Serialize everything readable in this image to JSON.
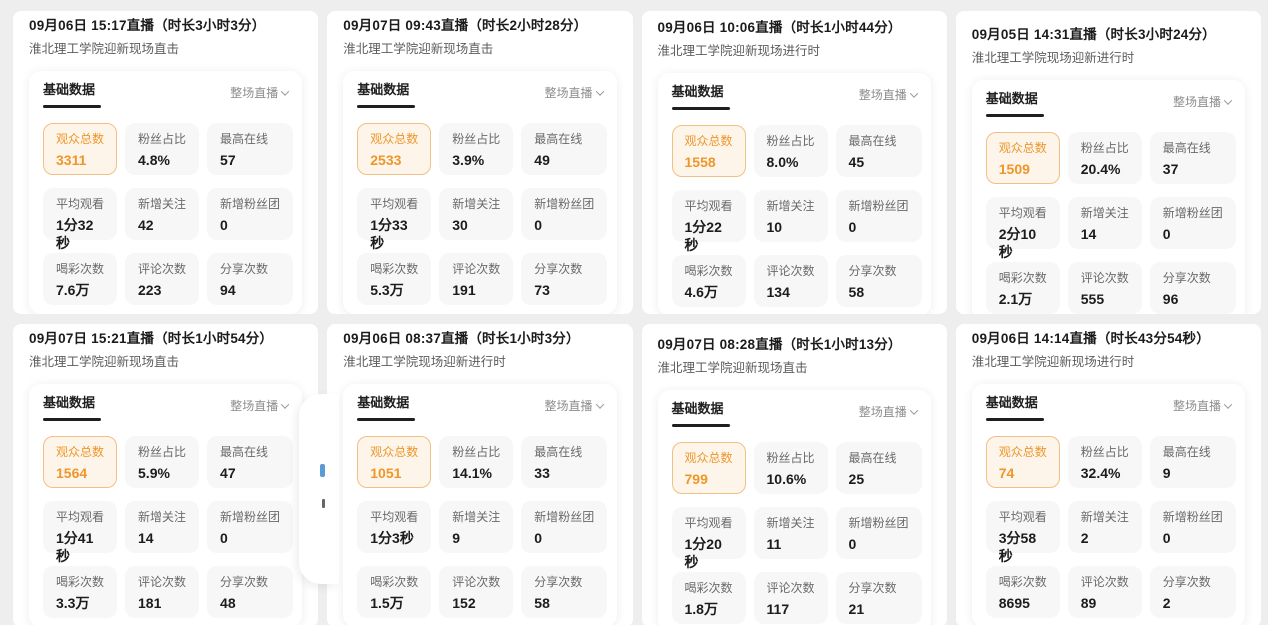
{
  "colors": {
    "page_bg": "#eeeeee",
    "card_bg": "#ffffff",
    "tile_bg": "#f7f7f8",
    "highlight_bg": "#fdf5ea",
    "highlight_border": "#f2bf84",
    "accent_orange": "#ee9629",
    "title_color": "#1b1b1b",
    "subtitle_color": "#5c5c5c",
    "muted_color": "#8d8d8d"
  },
  "ui": {
    "tab_label": "基础数据",
    "dropdown_label": "整场直播",
    "dropdown_icon": "chevron-down"
  },
  "cards": [
    {
      "title": "09月06日 15:17直播（时长3小时3分）",
      "subtitle": "淮北理工学院迎新现场直击",
      "stats": [
        {
          "label": "观众总数",
          "value": "3311",
          "highlight": true
        },
        {
          "label": "粉丝占比",
          "value": "4.8%"
        },
        {
          "label": "最高在线",
          "value": "57"
        },
        {
          "label": "平均观看",
          "value": "1分32秒"
        },
        {
          "label": "新增关注",
          "value": "42"
        },
        {
          "label": "新增粉丝团",
          "value": "0"
        },
        {
          "label": "喝彩次数",
          "value": "7.6万"
        },
        {
          "label": "评论次数",
          "value": "223"
        },
        {
          "label": "分享次数",
          "value": "94"
        }
      ]
    },
    {
      "title": "09月07日 09:43直播（时长2小时28分）",
      "subtitle": "淮北理工学院迎新现场直击",
      "stats": [
        {
          "label": "观众总数",
          "value": "2533",
          "highlight": true
        },
        {
          "label": "粉丝占比",
          "value": "3.9%"
        },
        {
          "label": "最高在线",
          "value": "49"
        },
        {
          "label": "平均观看",
          "value": "1分33秒"
        },
        {
          "label": "新增关注",
          "value": "30"
        },
        {
          "label": "新增粉丝团",
          "value": "0"
        },
        {
          "label": "喝彩次数",
          "value": "5.3万"
        },
        {
          "label": "评论次数",
          "value": "191"
        },
        {
          "label": "分享次数",
          "value": "73"
        }
      ]
    },
    {
      "title": "09月06日 10:06直播（时长1小时44分）",
      "subtitle": "淮北理工学院迎新现场进行时",
      "stats": [
        {
          "label": "观众总数",
          "value": "1558",
          "highlight": true
        },
        {
          "label": "粉丝占比",
          "value": "8.0%"
        },
        {
          "label": "最高在线",
          "value": "45"
        },
        {
          "label": "平均观看",
          "value": "1分22秒"
        },
        {
          "label": "新增关注",
          "value": "10"
        },
        {
          "label": "新增粉丝团",
          "value": "0"
        },
        {
          "label": "喝彩次数",
          "value": "4.6万"
        },
        {
          "label": "评论次数",
          "value": "134"
        },
        {
          "label": "分享次数",
          "value": "58"
        }
      ]
    },
    {
      "title": "09月05日 14:31直播（时长3小时24分）",
      "subtitle": "淮北理工学院现场迎新进行时",
      "stats": [
        {
          "label": "观众总数",
          "value": "1509",
          "highlight": true
        },
        {
          "label": "粉丝占比",
          "value": "20.4%"
        },
        {
          "label": "最高在线",
          "value": "37"
        },
        {
          "label": "平均观看",
          "value": "2分10秒"
        },
        {
          "label": "新增关注",
          "value": "14"
        },
        {
          "label": "新增粉丝团",
          "value": "0"
        },
        {
          "label": "喝彩次数",
          "value": "2.1万"
        },
        {
          "label": "评论次数",
          "value": "555"
        },
        {
          "label": "分享次数",
          "value": "96"
        }
      ]
    },
    {
      "title": "09月07日 15:21直播（时长1小时54分）",
      "subtitle": "淮北理工学院迎新现场直击",
      "stats": [
        {
          "label": "观众总数",
          "value": "1564",
          "highlight": true
        },
        {
          "label": "粉丝占比",
          "value": "5.9%"
        },
        {
          "label": "最高在线",
          "value": "47"
        },
        {
          "label": "平均观看",
          "value": "1分41秒"
        },
        {
          "label": "新增关注",
          "value": "14"
        },
        {
          "label": "新增粉丝团",
          "value": "0"
        },
        {
          "label": "喝彩次数",
          "value": "3.3万"
        },
        {
          "label": "评论次数",
          "value": "181"
        },
        {
          "label": "分享次数",
          "value": "48"
        }
      ]
    },
    {
      "title": "09月06日 08:37直播（时长1小时3分）",
      "subtitle": "淮北理工学院现场迎新进行时",
      "stats": [
        {
          "label": "观众总数",
          "value": "1051",
          "highlight": true
        },
        {
          "label": "粉丝占比",
          "value": "14.1%"
        },
        {
          "label": "最高在线",
          "value": "33"
        },
        {
          "label": "平均观看",
          "value": "1分3秒"
        },
        {
          "label": "新增关注",
          "value": "9"
        },
        {
          "label": "新增粉丝团",
          "value": "0"
        },
        {
          "label": "喝彩次数",
          "value": "1.5万"
        },
        {
          "label": "评论次数",
          "value": "152"
        },
        {
          "label": "分享次数",
          "value": "58"
        }
      ]
    },
    {
      "title": "09月07日 08:28直播（时长1小时13分）",
      "subtitle": "淮北理工学院迎新现场直击",
      "stats": [
        {
          "label": "观众总数",
          "value": "799",
          "highlight": true
        },
        {
          "label": "粉丝占比",
          "value": "10.6%"
        },
        {
          "label": "最高在线",
          "value": "25"
        },
        {
          "label": "平均观看",
          "value": "1分20秒"
        },
        {
          "label": "新增关注",
          "value": "11"
        },
        {
          "label": "新增粉丝团",
          "value": "0"
        },
        {
          "label": "喝彩次数",
          "value": "1.8万"
        },
        {
          "label": "评论次数",
          "value": "117"
        },
        {
          "label": "分享次数",
          "value": "21"
        }
      ]
    },
    {
      "title": "09月06日 14:14直播（时长43分54秒）",
      "subtitle": "淮北理工学院迎新现场进行时",
      "stats": [
        {
          "label": "观众总数",
          "value": "74",
          "highlight": true
        },
        {
          "label": "粉丝占比",
          "value": "32.4%"
        },
        {
          "label": "最高在线",
          "value": "9"
        },
        {
          "label": "平均观看",
          "value": "3分58秒"
        },
        {
          "label": "新增关注",
          "value": "2"
        },
        {
          "label": "新增粉丝团",
          "value": "0"
        },
        {
          "label": "喝彩次数",
          "value": "8695"
        },
        {
          "label": "评论次数",
          "value": "89"
        },
        {
          "label": "分享次数",
          "value": "2"
        }
      ]
    }
  ]
}
